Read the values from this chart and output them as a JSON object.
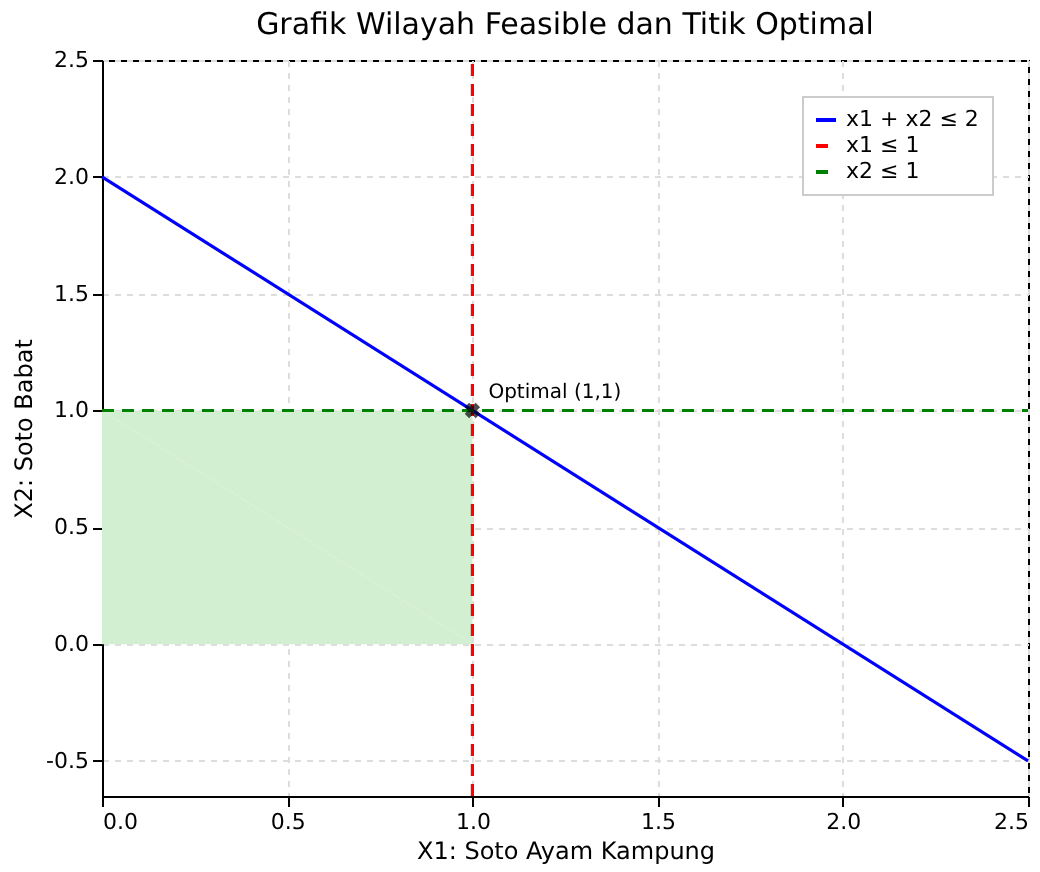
{
  "chart_data": {
    "type": "line",
    "title": "Grafik Wilayah Feasible dan Titik Optimal",
    "xlabel": "X1: Soto Ayam Kampung",
    "ylabel": "X2: Soto Babat",
    "xlim": [
      0,
      2.5
    ],
    "ylim": [
      -0.65,
      2.5
    ],
    "xticks": [
      {
        "value": 0,
        "label": "0.0"
      },
      0.5,
      {
        "value": 1,
        "label": "1.0"
      },
      1.5,
      {
        "value": 2,
        "label": "2.0"
      },
      2.5
    ],
    "yticks": [
      -0.5,
      {
        "value": 0,
        "label": "0.0"
      },
      0.5,
      {
        "value": 1,
        "label": "1.0"
      },
      1.5,
      {
        "value": 2,
        "label": "2.0"
      },
      2.5
    ],
    "grid": true,
    "legend": "top right",
    "annotations": [
      {
        "text": "Optimal (1,1)",
        "x": 1,
        "y": 1
      }
    ],
    "series": [
      {
        "type": "area",
        "color": "#d2efd2",
        "x": [
          0,
          1
        ],
        "values": [
          1,
          1
        ]
      },
      {
        "name": "x1 + x2 ≤ 2",
        "color": "#0000ff",
        "line_style": "solid",
        "x": [
          0,
          2.5
        ],
        "values": [
          2,
          -0.5
        ]
      },
      {
        "name": "x1 ≤ 1",
        "color": "#ff0000",
        "line_style": "dashed",
        "x": [
          1,
          1
        ],
        "values": [
          -0.65,
          2.5
        ]
      },
      {
        "name": "x2 ≤ 1",
        "color": "#008000",
        "line_style": "dashed",
        "x": [
          0,
          2.5
        ],
        "values": [
          1,
          1
        ]
      },
      {
        "type": "scatter",
        "color": "#000000",
        "marker": "cross",
        "x": [
          1
        ],
        "values": [
          1
        ]
      }
    ]
  }
}
